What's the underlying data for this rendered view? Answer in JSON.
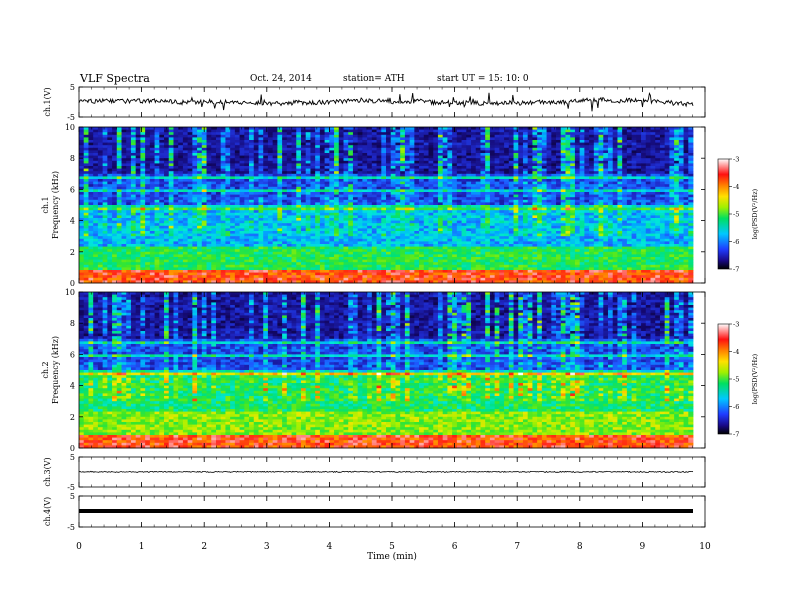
{
  "header": {
    "title": "VLF  Spectra",
    "date": "Oct. 24, 2014",
    "station": "station= ATH",
    "start": "start  UT  =   15: 10: 0"
  },
  "chart_data": [
    {
      "type": "line",
      "panel": "ch1-waveform",
      "ylabel": "ch.1(V)",
      "ylim": [
        -5,
        5
      ],
      "yticks": [
        5,
        -5
      ]
    },
    {
      "type": "heatmap",
      "panel": "ch1-spectrogram",
      "ylabel_line1": "ch.1",
      "ylabel_line2": "Frequency  (kHz)",
      "ylim": [
        0,
        10
      ],
      "yticks": [
        0,
        2,
        4,
        6,
        8,
        10
      ],
      "colorbar": {
        "label": "log(PSD(V²/Hz)",
        "range": [
          -7,
          -3
        ],
        "ticks": [
          -7,
          -6,
          -5,
          -4,
          -3
        ]
      }
    },
    {
      "type": "heatmap",
      "panel": "ch2-spectrogram",
      "ylabel_line1": "ch.2",
      "ylabel_line2": "Frequency  (kHz)",
      "ylim": [
        0,
        10
      ],
      "yticks": [
        0,
        2,
        4,
        6,
        8,
        10
      ],
      "colorbar": {
        "label": "log(PSD(V²/Hz)",
        "range": [
          -7,
          -3
        ],
        "ticks": [
          -7,
          -6,
          -5,
          -4,
          -3
        ]
      }
    },
    {
      "type": "line",
      "panel": "ch3-waveform",
      "ylabel": "ch.3(V)",
      "ylim": [
        -5,
        5
      ],
      "yticks": [
        5,
        -5
      ]
    },
    {
      "type": "line",
      "panel": "ch4-waveform",
      "ylabel": "ch.4(V)",
      "ylim": [
        -5,
        5
      ],
      "yticks": [
        5,
        -5
      ]
    }
  ],
  "xaxis": {
    "label": "Time  (min)",
    "xlim": [
      0,
      10
    ],
    "ticks": [
      0,
      1,
      2,
      3,
      4,
      5,
      6,
      7,
      8,
      9,
      10
    ]
  }
}
